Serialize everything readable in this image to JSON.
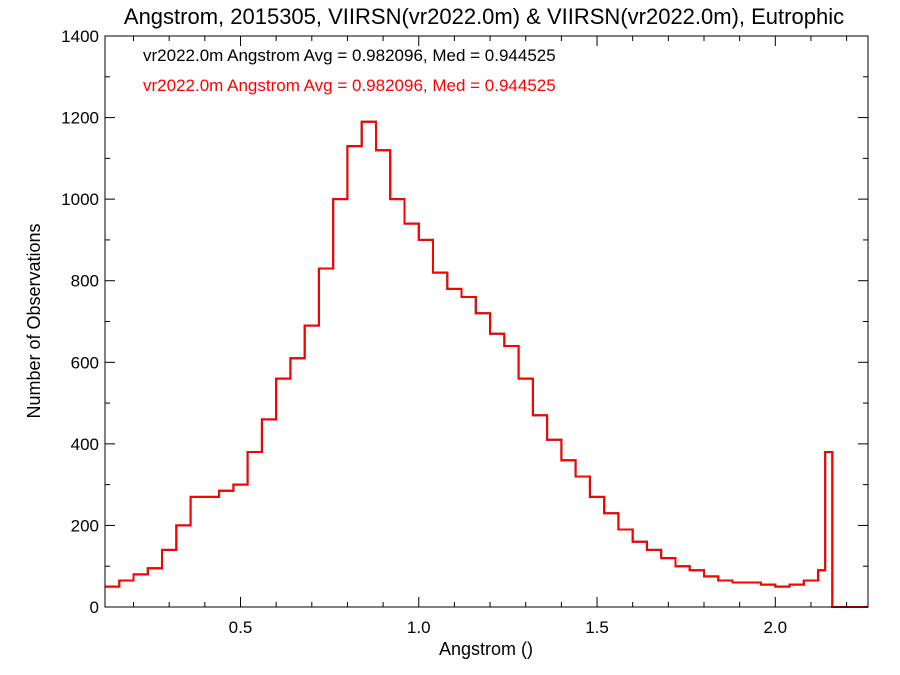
{
  "chart_data": {
    "type": "histogram",
    "title": "Angstrom, 2015305, VIIRSN(vr2022.0m) & VIIRSN(vr2022.0m), Eutrophic",
    "xlabel": "Angstrom ()",
    "ylabel": "Number of Observations",
    "xlim": [
      0.12,
      2.26
    ],
    "ylim": [
      0,
      1400
    ],
    "xticks": [
      {
        "value": 0.5,
        "label": "0.5"
      },
      {
        "value": 1.0,
        "label": "1.0"
      },
      {
        "value": 1.5,
        "label": "1.5"
      },
      {
        "value": 2.0,
        "label": "2.0"
      }
    ],
    "yticks": [
      {
        "value": 0,
        "label": "0"
      },
      {
        "value": 200,
        "label": "200"
      },
      {
        "value": 400,
        "label": "400"
      },
      {
        "value": 600,
        "label": "600"
      },
      {
        "value": 800,
        "label": "800"
      },
      {
        "value": 1000,
        "label": "1000"
      },
      {
        "value": 1200,
        "label": "1200"
      },
      {
        "value": 1400,
        "label": "1400"
      }
    ],
    "grid": false,
    "legend_placement": "top-left",
    "annotations": [
      {
        "text": "vr2022.0m Angstrom Avg = 0.982096, Med = 0.944525",
        "color": "#000000"
      },
      {
        "text": "vr2022.0m Angstrom Avg = 0.982096, Med = 0.944525",
        "color": "#ff0000"
      }
    ],
    "series": [
      {
        "color": "#000000",
        "x": [
          0.12,
          0.16,
          0.2,
          0.24,
          0.28,
          0.32,
          0.36,
          0.4,
          0.44,
          0.48,
          0.52,
          0.56,
          0.6,
          0.64,
          0.68,
          0.72,
          0.76,
          0.8,
          0.84,
          0.88,
          0.92,
          0.96,
          1.0,
          1.04,
          1.08,
          1.12,
          1.16,
          1.2,
          1.24,
          1.28,
          1.32,
          1.36,
          1.4,
          1.44,
          1.48,
          1.52,
          1.56,
          1.6,
          1.64,
          1.68,
          1.72,
          1.76,
          1.8,
          1.84,
          1.88,
          1.92,
          1.96,
          2.0,
          2.04,
          2.08,
          2.12,
          2.14,
          2.16,
          2.2,
          2.26
        ],
        "values": [
          50,
          65,
          80,
          95,
          140,
          200,
          270,
          270,
          285,
          300,
          380,
          460,
          560,
          610,
          690,
          830,
          1000,
          1130,
          1190,
          1120,
          1000,
          940,
          900,
          820,
          780,
          760,
          720,
          670,
          640,
          560,
          470,
          410,
          360,
          320,
          270,
          230,
          190,
          160,
          140,
          120,
          100,
          90,
          75,
          65,
          60,
          60,
          55,
          50,
          55,
          65,
          90,
          380,
          0,
          0,
          0
        ]
      },
      {
        "color": "#ff0000",
        "x": [
          0.12,
          0.16,
          0.2,
          0.24,
          0.28,
          0.32,
          0.36,
          0.4,
          0.44,
          0.48,
          0.52,
          0.56,
          0.6,
          0.64,
          0.68,
          0.72,
          0.76,
          0.8,
          0.84,
          0.88,
          0.92,
          0.96,
          1.0,
          1.04,
          1.08,
          1.12,
          1.16,
          1.2,
          1.24,
          1.28,
          1.32,
          1.36,
          1.4,
          1.44,
          1.48,
          1.52,
          1.56,
          1.6,
          1.64,
          1.68,
          1.72,
          1.76,
          1.8,
          1.84,
          1.88,
          1.92,
          1.96,
          2.0,
          2.04,
          2.08,
          2.12,
          2.14,
          2.16,
          2.2,
          2.26
        ],
        "values": [
          50,
          65,
          80,
          95,
          140,
          200,
          270,
          270,
          285,
          300,
          380,
          460,
          560,
          610,
          690,
          830,
          1000,
          1130,
          1190,
          1120,
          1000,
          940,
          900,
          820,
          780,
          760,
          720,
          670,
          640,
          560,
          470,
          410,
          360,
          320,
          270,
          230,
          190,
          160,
          140,
          120,
          100,
          90,
          75,
          65,
          60,
          60,
          55,
          50,
          55,
          65,
          90,
          380,
          0,
          0,
          0
        ]
      }
    ]
  }
}
